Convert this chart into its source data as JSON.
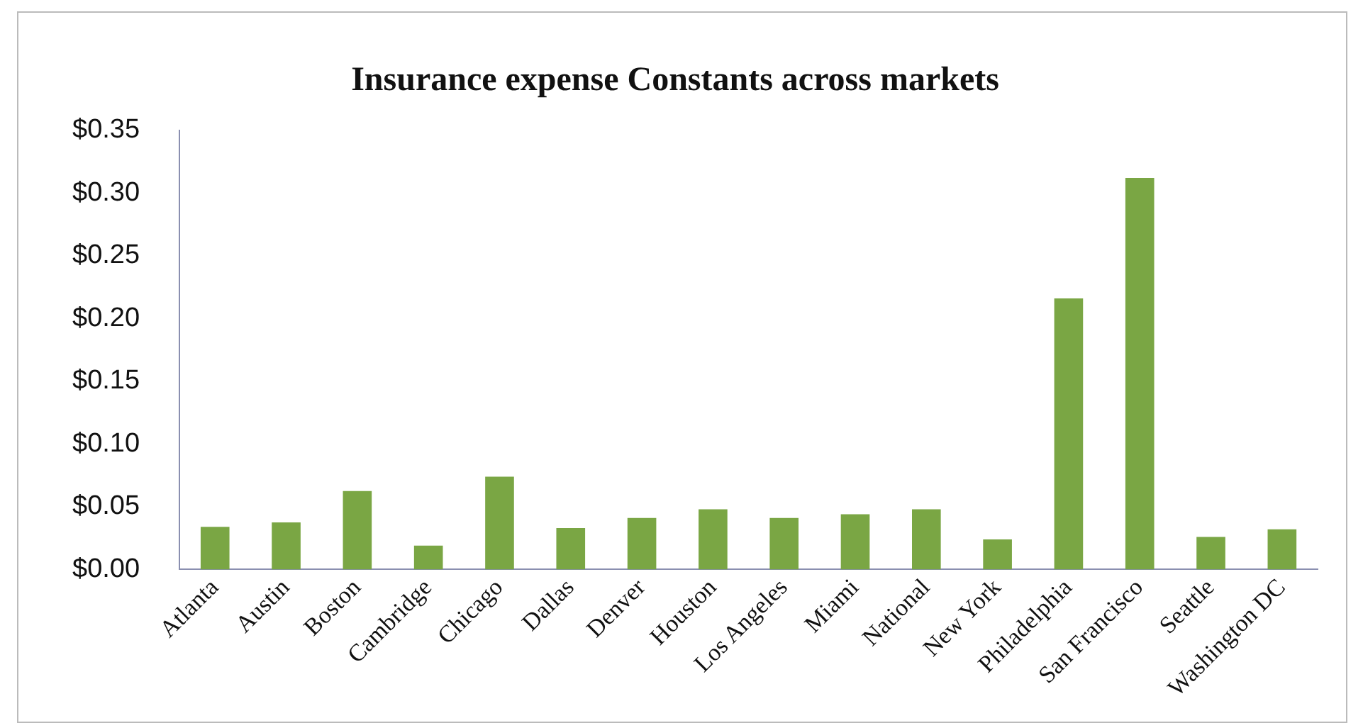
{
  "chart_data": {
    "type": "bar",
    "title": "Insurance expense Constants across markets",
    "categories": [
      "Atlanta",
      "Austin",
      "Boston",
      "Cambridge",
      "Chicago",
      "Dallas",
      "Denver",
      "Houston",
      "Los Angeles",
      "Miami",
      "National",
      "New York",
      "Philadelphia",
      "San Francisco",
      "Seattle",
      "Washington DC"
    ],
    "values": [
      0.034,
      0.0375,
      0.0625,
      0.019,
      0.074,
      0.033,
      0.041,
      0.048,
      0.041,
      0.044,
      0.048,
      0.024,
      0.216,
      0.312,
      0.026,
      0.032
    ],
    "color": "#7aa644",
    "ylim": [
      0,
      0.35
    ],
    "yticks": [
      {
        "value": 0,
        "label": "$0.00"
      },
      {
        "value": 0.05,
        "label": "$0.05"
      },
      {
        "value": 0.1,
        "label": "$0.10"
      },
      {
        "value": 0.15,
        "label": "$0.15"
      },
      {
        "value": 0.2,
        "label": "$0.20"
      },
      {
        "value": 0.25,
        "label": "$0.25"
      },
      {
        "value": 0.3,
        "label": "$0.30"
      },
      {
        "value": 0.35,
        "label": "$0.35"
      }
    ],
    "grid": false,
    "legend": false
  }
}
